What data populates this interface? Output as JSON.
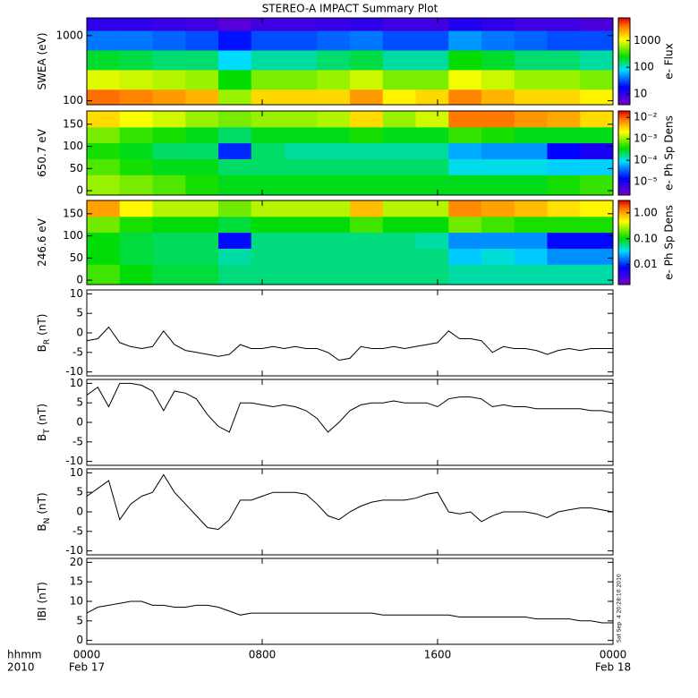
{
  "title": "STEREO-A IMPACT Summary Plot",
  "timestamp": "Sat Sep  4 20:28:10 2010",
  "x_axis": {
    "xlim": [
      0,
      24
    ],
    "xticks": [
      {
        "value": 0,
        "label": "0000"
      },
      {
        "value": 8,
        "label": "0800"
      },
      {
        "value": 16,
        "label": "1600"
      },
      {
        "value": 24,
        "label": "0000"
      }
    ],
    "dates": [
      {
        "value": 0,
        "label": "Feb 17"
      },
      {
        "value": 24,
        "label": "Feb 18"
      }
    ],
    "unit": "hhmm",
    "year": "2010"
  },
  "chart_data": [
    {
      "type": "heatmap",
      "ylabel": "SWEA (eV)",
      "log": true,
      "ylim": [
        87,
        1870
      ],
      "yticks": [
        100,
        1000
      ],
      "colorbar_label": "e- Flux",
      "zlim": [
        4,
        7000
      ],
      "zticks": [
        10,
        100,
        1000
      ],
      "xbins": [
        0,
        1.5,
        3,
        4.5,
        6,
        7.5,
        9,
        10.5,
        12,
        13.5,
        15,
        16.5,
        18,
        19.5,
        21,
        22.5,
        24
      ],
      "ybins": [
        87,
        150,
        300,
        600,
        1200,
        1870
      ],
      "z": [
        [
          3500,
          3000,
          2500,
          2000,
          600,
          1500,
          1500,
          1500,
          2500,
          1200,
          1500,
          3000,
          2000,
          1500,
          1500,
          1200
        ],
        [
          900,
          800,
          700,
          600,
          250,
          500,
          500,
          600,
          800,
          500,
          500,
          1000,
          800,
          600,
          600,
          500
        ],
        [
          200,
          180,
          150,
          150,
          80,
          120,
          120,
          150,
          180,
          120,
          120,
          250,
          200,
          150,
          150,
          120
        ],
        [
          40,
          40,
          35,
          30,
          20,
          30,
          30,
          35,
          40,
          30,
          30,
          50,
          40,
          35,
          30,
          30
        ],
        [
          10,
          10,
          9,
          8,
          6,
          8,
          8,
          9,
          10,
          8,
          8,
          12,
          10,
          8,
          8,
          7
        ]
      ]
    },
    {
      "type": "heatmap",
      "ylabel": "650.7 eV",
      "ylim": [
        -10,
        180
      ],
      "yticks": [
        0,
        50,
        100,
        150
      ],
      "colorbar_label": "e- Ph Sp Dens",
      "zlim": [
        2.4e-06,
        0.02
      ],
      "zticks": [
        {
          "value": 0.01,
          "label": "10⁻²"
        },
        {
          "value": 0.001,
          "label": "10⁻³"
        },
        {
          "value": 0.0001,
          "label": "10⁻⁴"
        },
        {
          "value": 1e-05,
          "label": "10⁻⁵"
        }
      ],
      "xbins": [
        0,
        1.5,
        3,
        4.5,
        6,
        7.5,
        9,
        10.5,
        12,
        13.5,
        15,
        16.5,
        18,
        19.5,
        21,
        22.5,
        24
      ],
      "ybins": [
        -10,
        36,
        72,
        108,
        144,
        180
      ],
      "z": [
        [
          0.001,
          0.0008,
          0.0006,
          0.0004,
          0.0003,
          0.0003,
          0.0003,
          0.0003,
          0.0003,
          0.0003,
          0.0003,
          0.0003,
          0.0003,
          0.0003,
          0.0004,
          0.0005
        ],
        [
          0.0006,
          0.0004,
          0.0003,
          0.0003,
          0.0002,
          0.0002,
          0.0002,
          0.0002,
          0.0002,
          0.0002,
          0.0002,
          0.0001,
          0.0001,
          0.0001,
          8e-05,
          8e-05
        ],
        [
          0.0004,
          0.0003,
          0.0002,
          0.0002,
          2e-05,
          0.0002,
          0.00015,
          0.00015,
          0.00015,
          0.00015,
          0.00015,
          6e-05,
          5e-05,
          5e-05,
          1.5e-05,
          1e-05
        ],
        [
          0.0008,
          0.0005,
          0.0004,
          0.0003,
          0.0002,
          0.0003,
          0.0003,
          0.0003,
          0.0004,
          0.0003,
          0.0003,
          0.0005,
          0.0004,
          0.0003,
          0.0003,
          0.0003
        ],
        [
          0.003,
          0.002,
          0.0015,
          0.001,
          0.0008,
          0.001,
          0.001,
          0.0012,
          0.003,
          0.001,
          0.0015,
          0.008,
          0.008,
          0.006,
          0.005,
          0.003
        ]
      ]
    },
    {
      "type": "heatmap",
      "ylabel": "246.6 eV",
      "ylim": [
        -10,
        180
      ],
      "yticks": [
        0,
        50,
        100,
        150
      ],
      "colorbar_label": "e- Ph Sp Dens",
      "zlim": [
        0.0017,
        3
      ],
      "zticks": [
        {
          "value": 1,
          "label": "1.00"
        },
        {
          "value": 0.1,
          "label": "0.10"
        },
        0.01
      ],
      "xbins": [
        0,
        1.5,
        3,
        4.5,
        6,
        7.5,
        9,
        10.5,
        12,
        13.5,
        15,
        16.5,
        18,
        19.5,
        21,
        22.5,
        24
      ],
      "ybins": [
        -10,
        36,
        72,
        108,
        144,
        180
      ],
      "z": [
        [
          0.15,
          0.1,
          0.08,
          0.08,
          0.06,
          0.06,
          0.06,
          0.06,
          0.06,
          0.06,
          0.06,
          0.05,
          0.05,
          0.05,
          0.05,
          0.05
        ],
        [
          0.1,
          0.08,
          0.07,
          0.07,
          0.05,
          0.06,
          0.06,
          0.06,
          0.06,
          0.06,
          0.06,
          0.03,
          0.04,
          0.03,
          0.02,
          0.02
        ],
        [
          0.1,
          0.08,
          0.07,
          0.07,
          0.008,
          0.06,
          0.06,
          0.06,
          0.06,
          0.06,
          0.05,
          0.02,
          0.02,
          0.02,
          0.008,
          0.008
        ],
        [
          0.2,
          0.12,
          0.1,
          0.1,
          0.08,
          0.1,
          0.1,
          0.1,
          0.15,
          0.1,
          0.1,
          0.2,
          0.15,
          0.12,
          0.12,
          0.12
        ],
        [
          1.0,
          0.5,
          0.3,
          0.3,
          0.2,
          0.3,
          0.3,
          0.3,
          0.8,
          0.3,
          0.3,
          1.2,
          1.0,
          0.8,
          0.6,
          0.5
        ]
      ]
    },
    {
      "type": "line",
      "ylabel": "B",
      "ylabel_sub": "R",
      "ylabel_unit": "(nT)",
      "color": "#000000",
      "ylim": [
        -11,
        11
      ],
      "yticks": [
        10,
        5,
        0,
        -5,
        -10
      ],
      "x": [
        0,
        0.5,
        1,
        1.5,
        2,
        2.5,
        3,
        3.5,
        4,
        4.5,
        5,
        5.5,
        6,
        6.5,
        7,
        7.5,
        8,
        8.5,
        9,
        9.5,
        10,
        10.5,
        11,
        11.5,
        12,
        12.5,
        13,
        13.5,
        14,
        14.5,
        15,
        15.5,
        16,
        16.5,
        17,
        17.5,
        18,
        18.5,
        19,
        19.5,
        20,
        20.5,
        21,
        21.5,
        22,
        22.5,
        23,
        23.5,
        24
      ],
      "values": [
        -2,
        -1.5,
        1.5,
        -2.5,
        -3.5,
        -4,
        -3.5,
        0.5,
        -3,
        -4.5,
        -5,
        -5.5,
        -6,
        -5.5,
        -3,
        -4,
        -4,
        -3.5,
        -4,
        -3.5,
        -4,
        -4,
        -5,
        -7,
        -6.5,
        -3.5,
        -4,
        -4,
        -3.5,
        -4,
        -3.5,
        -3,
        -2.5,
        0.5,
        -1.5,
        -1.5,
        -2,
        -5,
        -3.5,
        -4,
        -4,
        -4.5,
        -5.5,
        -4.5,
        -4,
        -4.5,
        -4,
        -4,
        -4
      ]
    },
    {
      "type": "line",
      "ylabel": "B",
      "ylabel_sub": "T",
      "ylabel_unit": "(nT)",
      "color": "#000000",
      "ylim": [
        -11,
        11
      ],
      "yticks": [
        10,
        5,
        0,
        -5,
        -10
      ],
      "x": [
        0,
        0.5,
        1,
        1.5,
        2,
        2.5,
        3,
        3.5,
        4,
        4.5,
        5,
        5.5,
        6,
        6.5,
        7,
        7.5,
        8,
        8.5,
        9,
        9.5,
        10,
        10.5,
        11,
        11.5,
        12,
        12.5,
        13,
        13.5,
        14,
        14.5,
        15,
        15.5,
        16,
        16.5,
        17,
        17.5,
        18,
        18.5,
        19,
        19.5,
        20,
        20.5,
        21,
        21.5,
        22,
        22.5,
        23,
        23.5,
        24
      ],
      "values": [
        7,
        9,
        4,
        10,
        10,
        9.5,
        8,
        3,
        8,
        7.5,
        6,
        2,
        -1,
        -2.5,
        5,
        5,
        4.5,
        4,
        4.5,
        4,
        3,
        1,
        -2.5,
        0,
        3,
        4.5,
        5,
        5,
        5.5,
        5,
        5,
        5,
        4,
        6,
        6.5,
        6.5,
        6,
        4,
        4.5,
        4,
        4,
        3.5,
        3.5,
        3.5,
        3.5,
        3.5,
        3,
        3,
        2.5
      ]
    },
    {
      "type": "line",
      "ylabel": "B",
      "ylabel_sub": "N",
      "ylabel_unit": "(nT)",
      "color": "#000000",
      "ylim": [
        -11,
        11
      ],
      "yticks": [
        10,
        5,
        0,
        -5,
        -10
      ],
      "x": [
        0,
        0.5,
        1,
        1.5,
        2,
        2.5,
        3,
        3.5,
        4,
        4.5,
        5,
        5.5,
        6,
        6.5,
        7,
        7.5,
        8,
        8.5,
        9,
        9.5,
        10,
        10.5,
        11,
        11.5,
        12,
        12.5,
        13,
        13.5,
        14,
        14.5,
        15,
        15.5,
        16,
        16.5,
        17,
        17.5,
        18,
        18.5,
        19,
        19.5,
        20,
        20.5,
        21,
        21.5,
        22,
        22.5,
        23,
        23.5,
        24
      ],
      "values": [
        4,
        6,
        8,
        -2,
        2,
        4,
        5,
        9.5,
        5,
        2,
        -1,
        -4,
        -4.5,
        -2,
        3,
        3,
        4,
        5,
        5,
        5,
        4.5,
        2,
        -1,
        -2,
        0,
        1.5,
        2.5,
        3,
        3,
        3,
        3.5,
        4.5,
        5,
        0,
        -0.5,
        0,
        -2.5,
        -1,
        0,
        0,
        0,
        -0.5,
        -1.5,
        0,
        0.5,
        1,
        1,
        0.5,
        0
      ]
    },
    {
      "type": "line",
      "ylabel": "IBI",
      "ylabel_unit": "(nT)",
      "color": "#000000",
      "ylim": [
        -1,
        21
      ],
      "yticks": [
        20,
        15,
        10,
        5,
        0
      ],
      "x": [
        0,
        0.5,
        1,
        1.5,
        2,
        2.5,
        3,
        3.5,
        4,
        4.5,
        5,
        5.5,
        6,
        6.5,
        7,
        7.5,
        8,
        8.5,
        9,
        9.5,
        10,
        10.5,
        11,
        11.5,
        12,
        12.5,
        13,
        13.5,
        14,
        14.5,
        15,
        15.5,
        16,
        16.5,
        17,
        17.5,
        18,
        18.5,
        19,
        19.5,
        20,
        20.5,
        21,
        21.5,
        22,
        22.5,
        23,
        23.5,
        24
      ],
      "values": [
        7,
        8.5,
        9,
        9.5,
        10,
        10,
        9,
        9,
        8.5,
        8.5,
        9,
        9,
        8.5,
        7.5,
        6.5,
        7,
        7,
        7,
        7,
        7,
        7,
        7,
        7,
        7,
        7,
        7,
        7,
        6.5,
        6.5,
        6.5,
        6.5,
        6.5,
        6.5,
        6.5,
        6,
        6,
        6,
        6,
        6,
        6,
        6,
        5.5,
        5.5,
        5.5,
        5.5,
        5,
        5,
        4.5,
        4.5
      ]
    }
  ]
}
